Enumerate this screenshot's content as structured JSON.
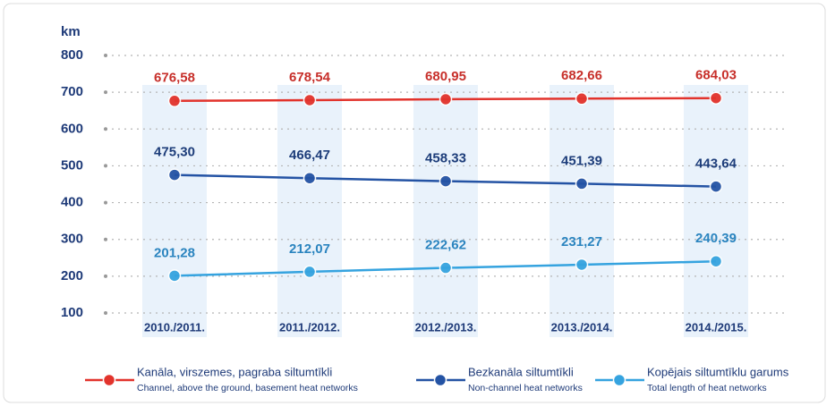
{
  "chart_data": {
    "type": "line",
    "y_label": "km",
    "categories": [
      "2010./2011.",
      "2011./2012.",
      "2012./2013.",
      "2013./2014.",
      "2014./2015."
    ],
    "ylim": [
      100,
      800
    ],
    "yticks": [
      100,
      200,
      300,
      400,
      500,
      600,
      700,
      800
    ],
    "grid": true,
    "series": [
      {
        "name": "Kanāla, virszemes, pagraba siltumtīkli",
        "name_en": "Channel, above the ground, basement heat networks",
        "color": "#e2332c",
        "values": [
          676.58,
          678.54,
          680.95,
          682.66,
          684.03
        ],
        "value_labels": [
          "676,58",
          "678,54",
          "680,95",
          "682,66",
          "684,03"
        ]
      },
      {
        "name": "Bezkanāla siltumtīkli",
        "name_en": "Non-channel heat networks",
        "color": "#2453a4",
        "values": [
          475.3,
          466.47,
          458.33,
          451.39,
          443.64
        ],
        "value_labels": [
          "475,30",
          "466,47",
          "458,33",
          "451,39",
          "443,64"
        ]
      },
      {
        "name": "Kopējais siltumtīklu garums",
        "name_en": "Total length of heat networks",
        "color": "#35a3df",
        "values": [
          201.28,
          212.07,
          222.62,
          231.27,
          240.39
        ],
        "value_labels": [
          "201,28",
          "212,07",
          "222,62",
          "231,27",
          "240,39"
        ]
      }
    ]
  }
}
